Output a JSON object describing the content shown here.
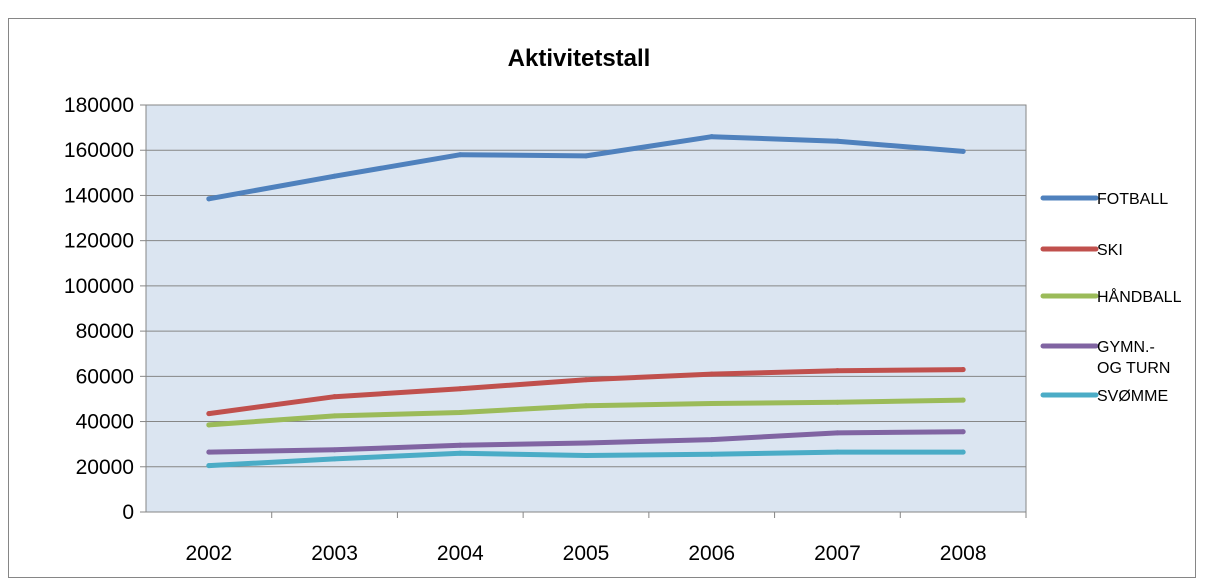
{
  "chart_data": {
    "type": "line",
    "title": "Aktivitetstall",
    "xlabel": "",
    "ylabel": "",
    "categories": [
      "2002",
      "2003",
      "2004",
      "2005",
      "2006",
      "2007",
      "2008"
    ],
    "ylim": [
      0,
      180000
    ],
    "yticks": [
      "0",
      "20000",
      "40000",
      "60000",
      "80000",
      "100000",
      "120000",
      "140000",
      "160000",
      "180000"
    ],
    "grid": "horizontal",
    "plot_background": "#DBE5F1",
    "legend_position": "right",
    "series": [
      {
        "name": "FOTBALL",
        "legend_lines": [
          "FOTBALL"
        ],
        "color": "#4F81BD",
        "values": [
          138500,
          148500,
          158000,
          157500,
          166000,
          164000,
          159500
        ]
      },
      {
        "name": "SKI",
        "legend_lines": [
          "SKI"
        ],
        "color": "#C0504D",
        "values": [
          43500,
          51000,
          54500,
          58500,
          61000,
          62500,
          63000
        ]
      },
      {
        "name": "HÅNDBALL",
        "legend_lines": [
          "HÅNDBALL"
        ],
        "color": "#9BBB59",
        "values": [
          38500,
          42500,
          44000,
          47000,
          48000,
          48500,
          49500
        ]
      },
      {
        "name": "GYMN.- OG TURN",
        "legend_lines": [
          "GYMN.-",
          "OG TURN"
        ],
        "color": "#8064A2",
        "values": [
          26500,
          27500,
          29500,
          30500,
          32000,
          35000,
          35500
        ]
      },
      {
        "name": "SVØMME",
        "legend_lines": [
          "SVØMME"
        ],
        "color": "#4BACC6",
        "values": [
          20500,
          23500,
          26000,
          25000,
          25500,
          26500,
          26500
        ]
      }
    ]
  }
}
